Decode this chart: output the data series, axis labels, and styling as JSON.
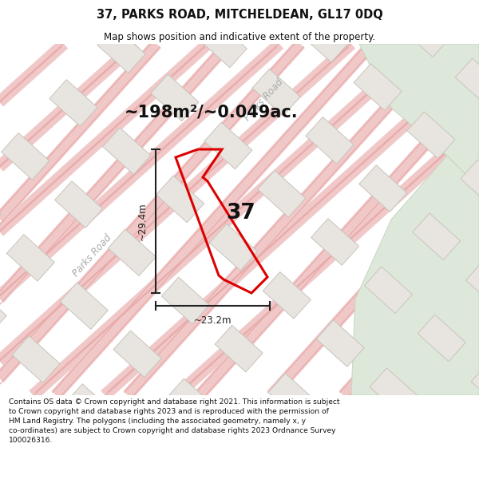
{
  "title_line1": "37, PARKS ROAD, MITCHELDEAN, GL17 0DQ",
  "title_line2": "Map shows position and indicative extent of the property.",
  "area_label": "~198m²/~0.049ac.",
  "number_label": "37",
  "dim_height": "~29.4m",
  "dim_width": "~23.2m",
  "road_label": "Parks Road",
  "footer_wrapped": "Contains OS data © Crown copyright and database right 2021. This information is subject\nto Crown copyright and database rights 2023 and is reproduced with the permission of\nHM Land Registry. The polygons (including the associated geometry, namely x, y\nco-ordinates) are subject to Crown copyright and database rights 2023 Ordnance Survey\n100026316.",
  "map_bg": "#f7f5f2",
  "road_pink": "#f0c8c8",
  "road_edge_pink": "#e8a8a8",
  "building_fill": "#e8e5e0",
  "building_edge": "#c8c4bc",
  "green_fill": "#dde8da",
  "green_edge": "#c8d8c4",
  "property_color": "#dd0000",
  "dim_color": "#222222",
  "text_color": "#111111",
  "road_text_color": "#aaaaaa",
  "white": "#ffffff"
}
